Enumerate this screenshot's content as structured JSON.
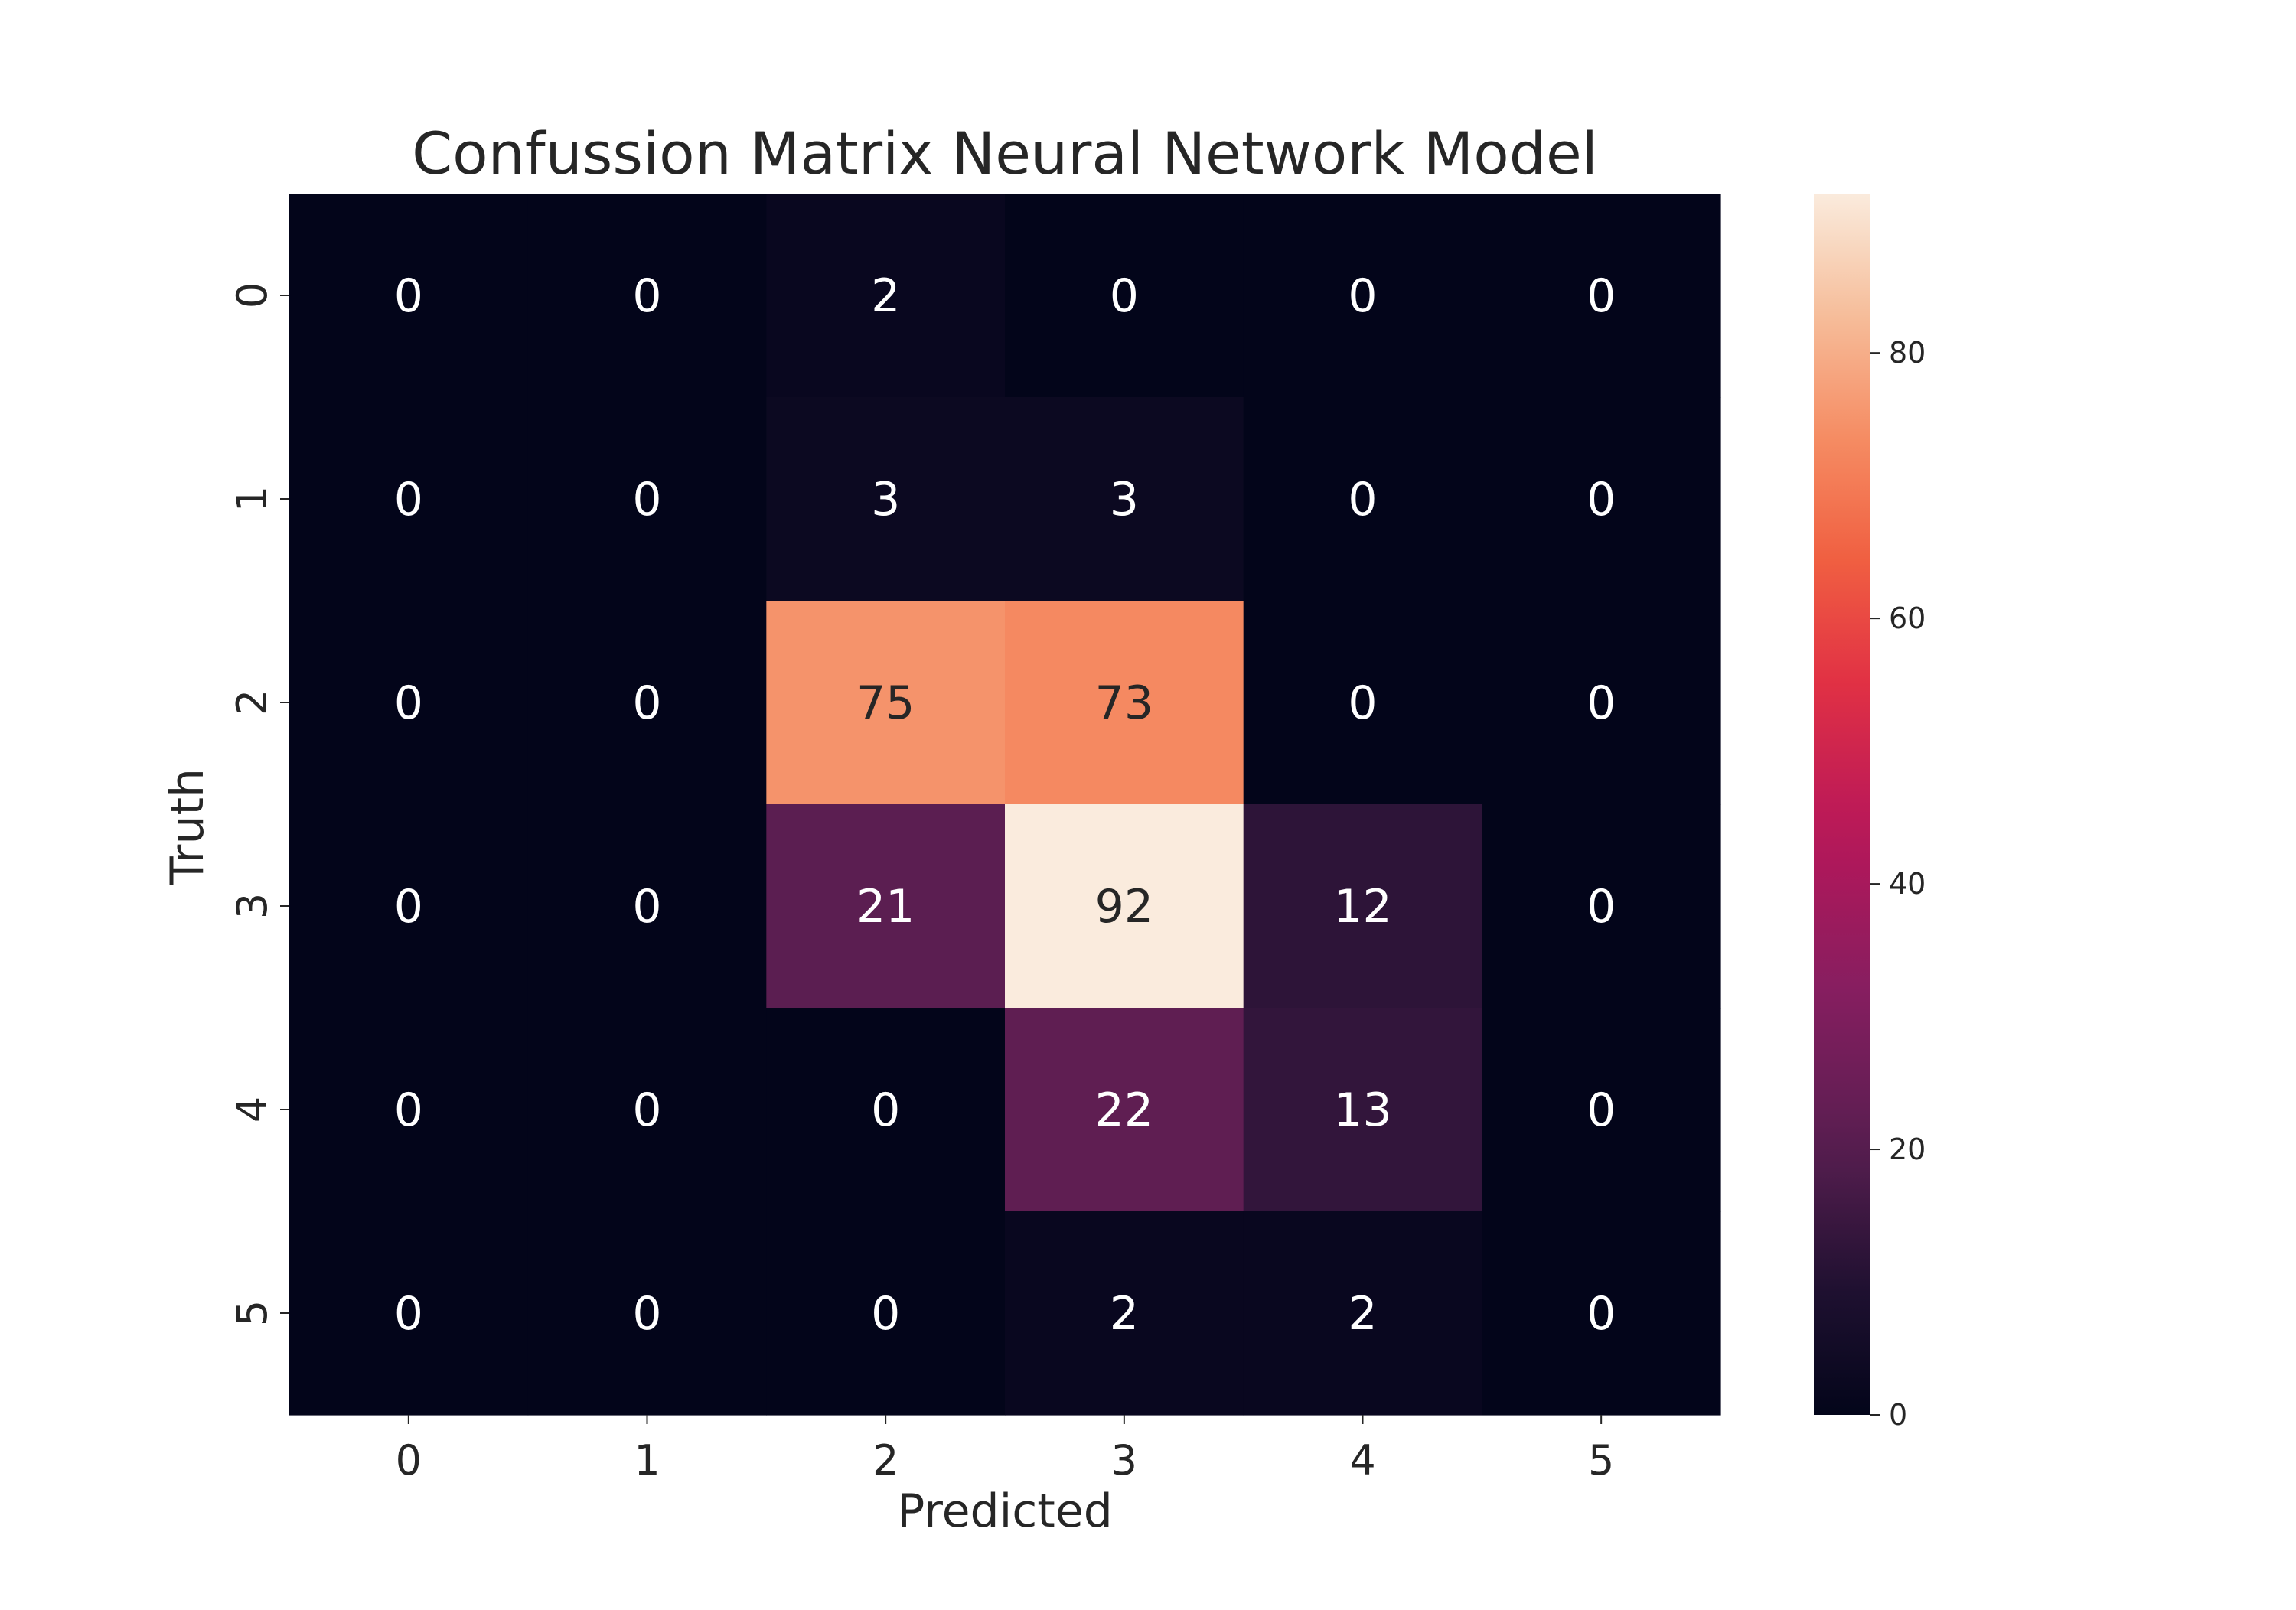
{
  "chart_data": {
    "type": "heatmap",
    "title": "Confussion Matrix Neural Network Model",
    "xlabel": "Predicted",
    "ylabel": "Truth",
    "x_categories": [
      "0",
      "1",
      "2",
      "3",
      "4",
      "5"
    ],
    "y_categories": [
      "0",
      "1",
      "2",
      "3",
      "4",
      "5"
    ],
    "values": [
      [
        0,
        0,
        2,
        0,
        0,
        0
      ],
      [
        0,
        0,
        3,
        3,
        0,
        0
      ],
      [
        0,
        0,
        75,
        73,
        0,
        0
      ],
      [
        0,
        0,
        21,
        92,
        12,
        0
      ],
      [
        0,
        0,
        0,
        22,
        13,
        0
      ],
      [
        0,
        0,
        0,
        2,
        2,
        0
      ]
    ],
    "colorbar": {
      "range": [
        0,
        92
      ],
      "ticks": [
        "0",
        "20",
        "40",
        "60",
        "80"
      ]
    },
    "colormap": "rocket",
    "grid": false
  }
}
